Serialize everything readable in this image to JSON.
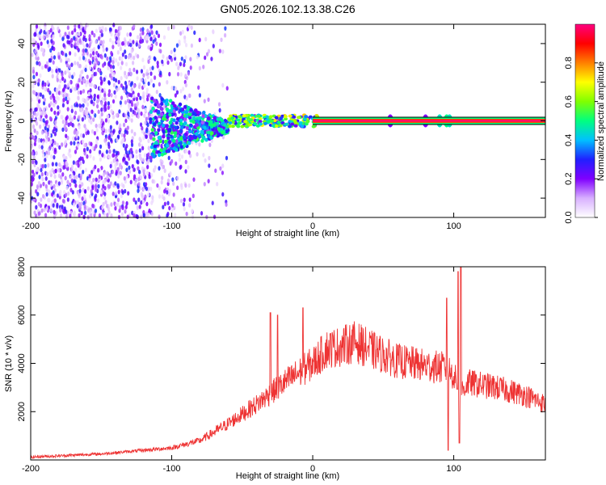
{
  "figure": {
    "title": "GN05.2026.102.13.38.C26"
  },
  "chart_data": [
    {
      "type": "heatmap",
      "xlabel": "Height of straight line (km)",
      "ylabel": "Frequency (Hz)",
      "xlim": [
        -200,
        165
      ],
      "ylim": [
        -50,
        50
      ],
      "x_ticks": [
        -200,
        -100,
        0,
        100
      ],
      "y_ticks": [
        -40,
        -20,
        0,
        20,
        40
      ],
      "colorbar": {
        "label": "Normalized spectral amplitude",
        "range": [
          0,
          1
        ],
        "ticks": [
          "0.0",
          "0.2",
          "0.4",
          "0.6",
          "0.8"
        ],
        "colors": [
          "#ffffff",
          "#d8b0ff",
          "#8000ff",
          "#2020ff",
          "#00c0ff",
          "#00ff80",
          "#80ff00",
          "#ffff00",
          "#ff8000",
          "#ff0000",
          "#ff0080"
        ]
      },
      "features": [
        {
          "desc": "sparse broadband noise",
          "x_range": [
            -200,
            -60
          ],
          "freq_range": [
            -50,
            50
          ],
          "amplitude": 0.15
        },
        {
          "desc": "signal emerging",
          "x_range": [
            -115,
            -60
          ],
          "freq_range": [
            -20,
            10
          ],
          "amplitude": 0.35
        },
        {
          "desc": "narrowband carrier",
          "x_range": [
            -60,
            165
          ],
          "freq_center": 0,
          "amplitude": 1.0
        }
      ]
    },
    {
      "type": "line",
      "xlabel": "Height of straight line (km)",
      "ylabel": "SNR (10 * v/v)",
      "xlim": [
        -200,
        165
      ],
      "ylim": [
        0,
        8000
      ],
      "x_ticks": [
        -200,
        -100,
        0,
        100
      ],
      "y_ticks": [
        2000,
        4000,
        6000,
        8000
      ],
      "series": [
        {
          "color": "#ee3333",
          "envelope": {
            "x": [
              -200,
              -150,
              -120,
              -100,
              -80,
              -60,
              -40,
              -20,
              0,
              10,
              20,
              30,
              40,
              60,
              80,
              95,
              100,
              105,
              110,
              130,
              150,
              165
            ],
            "y": [
              120,
              250,
              400,
              500,
              800,
              1500,
              2300,
              3200,
              4000,
              4600,
              4700,
              4900,
              4600,
              4100,
              3900,
              3800,
              3500,
              2800,
              3200,
              3000,
              2700,
              2300
            ]
          },
          "spikes": [
            {
              "x": -30,
              "y": 6100
            },
            {
              "x": -25,
              "y": 6000
            },
            {
              "x": -7,
              "y": 6300
            },
            {
              "x": 95,
              "y": 6700
            },
            {
              "x": 103,
              "y": 7800
            },
            {
              "x": 105,
              "y": 8000
            }
          ],
          "dips": [
            {
              "x": 96,
              "y": 400
            },
            {
              "x": 104,
              "y": 700
            }
          ]
        }
      ]
    }
  ]
}
